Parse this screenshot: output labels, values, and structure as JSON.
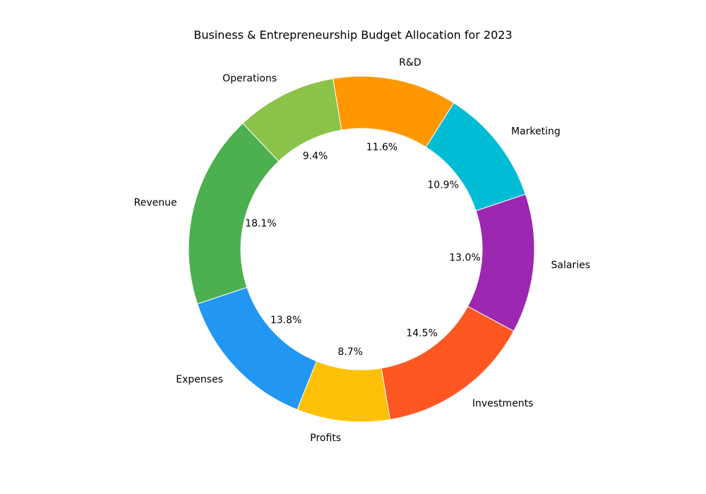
{
  "chart_data": {
    "type": "pie",
    "variant": "donut",
    "title": "Business & Entrepreneurship Budget Allocation for 2023",
    "slices": [
      {
        "label": "Marketing",
        "value": 10.9,
        "pct_label": "10.9%",
        "color": "#00BCD4"
      },
      {
        "label": "R&D",
        "value": 11.6,
        "pct_label": "11.6%",
        "color": "#FF9800"
      },
      {
        "label": "Operations",
        "value": 9.4,
        "pct_label": "9.4%",
        "color": "#8BC34A"
      },
      {
        "label": "Revenue",
        "value": 18.1,
        "pct_label": "18.1%",
        "color": "#4CAF50"
      },
      {
        "label": "Expenses",
        "value": 13.8,
        "pct_label": "13.8%",
        "color": "#2196F3"
      },
      {
        "label": "Profits",
        "value": 8.7,
        "pct_label": "8.7%",
        "color": "#FFC107"
      },
      {
        "label": "Investments",
        "value": 14.5,
        "pct_label": "14.5%",
        "color": "#FF5722"
      },
      {
        "label": "Salaries",
        "value": 13.0,
        "pct_label": "13.0%",
        "color": "#9C27B0"
      }
    ],
    "legend": "none",
    "direction": "counterclockwise"
  }
}
